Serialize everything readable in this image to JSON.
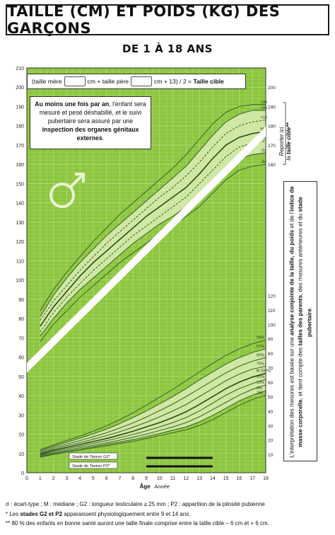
{
  "header": {
    "title": "TAILLE (CM) ET POIDS (KG) DES GARÇONS",
    "subtitle": "DE 1 À 18 ANS"
  },
  "formula": {
    "part1": "(taille mère",
    "part2": "cm + taille père",
    "part3": "cm + 13) / 2 =",
    "result": "Taille cible"
  },
  "note": {
    "line1_bold": "Au moins une fois par an",
    "line1_rest": ", l'enfant sera mesuré et pesé déshabillé, et le suivi pubertaire sera assuré par une",
    "line2_bold": "inspection des organes génitaux externes",
    "line2_end": "."
  },
  "side_label": {
    "line1": "Reporter ici",
    "line2": "la",
    "line2_bold": "taille cible**"
  },
  "right_text": {
    "t1": "L'interprétation des mesures est basée sur une ",
    "b1": "analyse conjointe de la taille, du poids",
    "t2": " et de l'",
    "b2": "indice de masse corporelle",
    "t3": ", et tient compte des ",
    "b3": "tailles des parents",
    "t4": ", des mesures antérieures et du ",
    "b4": "stade pubertaire",
    "t5": "."
  },
  "tanner": {
    "g2": "Stade de Tanner G2*",
    "p2": "Stade de Tanner P2*"
  },
  "axis": {
    "xlabel": "Âge",
    "xlabel2": "Année"
  },
  "footer": {
    "line1": "σ : écart-type ; M : médiane ; G2 : longueur testiculaire ≥ 25 mm ; P2 : apparition de la pilosité pubienne",
    "line2_a": "* Les ",
    "line2_b": "stades G2 et P2",
    "line2_c": " apparaissent physiologiquement entre 9 et 14 ans.",
    "line3": "** 80 % des enfants en bonne santé auront une taille finale comprise entre la taille cible – 6 cm et + 6 cm."
  },
  "colors": {
    "grid_bg": "#8dc63f",
    "band": "#d9ecb4",
    "curve": "#3f6a2a",
    "median": "#2a4a1a"
  },
  "chart_data": {
    "type": "line",
    "xlabel": "Âge",
    "ylabel": "",
    "xlim": [
      0,
      18
    ],
    "ylim": [
      0,
      210
    ],
    "x_ticks": [
      0,
      1,
      2,
      3,
      4,
      5,
      6,
      7,
      8,
      9,
      10,
      11,
      12,
      13,
      14,
      15,
      16,
      17,
      18
    ],
    "y_ticks": [
      0,
      10,
      20,
      30,
      40,
      50,
      60,
      70,
      80,
      90,
      100,
      110,
      120,
      130,
      140,
      150,
      160,
      170,
      180,
      190,
      200,
      210
    ],
    "right_axis_height": [
      160,
      170,
      180,
      190,
      200
    ],
    "right_axis_weight": [
      10,
      20,
      30,
      40,
      50,
      60,
      70,
      80,
      90,
      100,
      110,
      120
    ],
    "height": {
      "ages": [
        1,
        2,
        3,
        4,
        5,
        6,
        7,
        8,
        9,
        10,
        11,
        12,
        13,
        14,
        15,
        16,
        17,
        18
      ],
      "series": [
        {
          "name": "-3σ",
          "values": [
            68,
            77,
            84,
            91,
            97,
            103,
            109,
            114,
            119,
            124,
            128,
            133,
            138,
            145,
            152,
            157,
            159,
            160
          ]
        },
        {
          "name": "-2σ",
          "values": [
            71,
            80,
            88,
            95,
            101,
            107,
            113,
            119,
            124,
            129,
            133,
            138,
            144,
            151,
            158,
            163,
            165,
            166
          ]
        },
        {
          "name": "-1σ",
          "values": [
            73,
            83,
            91,
            98,
            105,
            111,
            117,
            123,
            128,
            133,
            138,
            143,
            150,
            157,
            164,
            169,
            171,
            172
          ]
        },
        {
          "name": "M",
          "values": [
            76,
            86,
            94,
            102,
            109,
            115,
            121,
            127,
            133,
            138,
            143,
            148,
            155,
            163,
            170,
            174,
            176,
            177
          ]
        },
        {
          "name": "+1σ",
          "values": [
            79,
            89,
            97,
            105,
            112,
            119,
            125,
            131,
            137,
            143,
            148,
            154,
            161,
            169,
            176,
            180,
            182,
            183
          ]
        },
        {
          "name": "+2σ",
          "values": [
            81,
            92,
            101,
            109,
            116,
            123,
            129,
            135,
            141,
            147,
            153,
            159,
            167,
            175,
            182,
            186,
            188,
            188
          ]
        },
        {
          "name": "+3σ",
          "values": [
            84,
            95,
            104,
            112,
            120,
            127,
            134,
            140,
            146,
            152,
            158,
            165,
            173,
            181,
            187,
            190,
            191,
            191
          ]
        }
      ]
    },
    "weight": {
      "ages": [
        1,
        2,
        3,
        4,
        5,
        6,
        7,
        8,
        9,
        10,
        11,
        12,
        13,
        14,
        15,
        16,
        17,
        18
      ],
      "series": [
        {
          "name": "1%",
          "values": [
            8,
            10,
            11.5,
            13,
            14.5,
            16,
            17.5,
            19,
            21,
            23,
            25,
            27,
            30,
            34,
            39,
            44,
            48,
            51
          ]
        },
        {
          "name": "3%",
          "values": [
            8.5,
            10.5,
            12.2,
            13.8,
            15.3,
            17,
            18.6,
            20.3,
            22.3,
            24.4,
            26.8,
            29,
            32.5,
            37,
            42,
            47,
            51,
            54
          ]
        },
        {
          "name": "10%",
          "values": [
            9,
            11.2,
            13,
            14.7,
            16.3,
            18,
            19.9,
            21.9,
            24,
            26.5,
            29,
            32,
            36,
            41,
            46,
            51,
            55,
            58
          ]
        },
        {
          "name": "25%",
          "values": [
            9.5,
            12,
            14,
            15.8,
            17.6,
            19.5,
            21.6,
            23.8,
            26.3,
            29,
            32,
            35.5,
            40,
            45.5,
            51,
            55.5,
            59,
            62
          ]
        },
        {
          "name": "M (50%)",
          "values": [
            10.2,
            12.8,
            14.9,
            16.9,
            18.9,
            21,
            23.4,
            26,
            29,
            32,
            35.5,
            39.5,
            44.5,
            50,
            55.5,
            60,
            63.5,
            66
          ]
        },
        {
          "name": "75%",
          "values": [
            11,
            13.7,
            16,
            18.2,
            20.5,
            23,
            25.7,
            28.8,
            32.2,
            36,
            40,
            44.5,
            50,
            55.5,
            61,
            65.5,
            69,
            71
          ]
        },
        {
          "name": "90%",
          "values": [
            11.7,
            14.6,
            17.1,
            19.6,
            22.2,
            25,
            28.2,
            31.8,
            35.8,
            40.2,
            44.8,
            50,
            55.5,
            61,
            66.5,
            71,
            74.5,
            77
          ]
        },
        {
          "name": "97%",
          "values": [
            12.5,
            15.6,
            18.4,
            21.2,
            24.2,
            27.5,
            31.3,
            35.5,
            40,
            45,
            50,
            55.5,
            61.5,
            67,
            72.5,
            77,
            80.5,
            83
          ]
        },
        {
          "name": "99%",
          "values": [
            13.2,
            16.5,
            19.6,
            22.7,
            26,
            29.8,
            34,
            38.8,
            44,
            49.5,
            55,
            61,
            67,
            73,
            78.5,
            83,
            86.5,
            89
          ]
        }
      ]
    },
    "height_labels": [
      "-3σ",
      "-2σ",
      "-1σ",
      "M",
      "+1σ",
      "+2σ",
      "+3σ"
    ],
    "weight_labels": [
      "1%",
      "3%",
      "10%",
      "25%",
      "M (50%)",
      "75%",
      "90%",
      "97%",
      "99%"
    ]
  }
}
